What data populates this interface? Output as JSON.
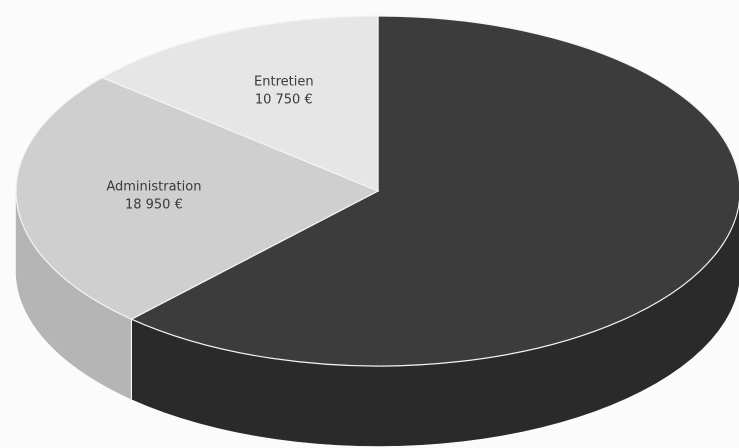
{
  "chart_data": {
    "type": "pie",
    "style": "3d",
    "slices": [
      {
        "label": "",
        "value": 48300,
        "value_label": "",
        "color": "#3c3c3c",
        "side_color": "#2a2a2a"
      },
      {
        "label": "Administration",
        "value": 18950,
        "value_label": "18 950 €",
        "color": "#cfcfcf",
        "side_color": "#b5b5b5"
      },
      {
        "label": "Entretien",
        "value": 10750,
        "value_label": "10 750 €",
        "color": "#e6e6e6",
        "side_color": "#cdcdcd"
      }
    ]
  }
}
